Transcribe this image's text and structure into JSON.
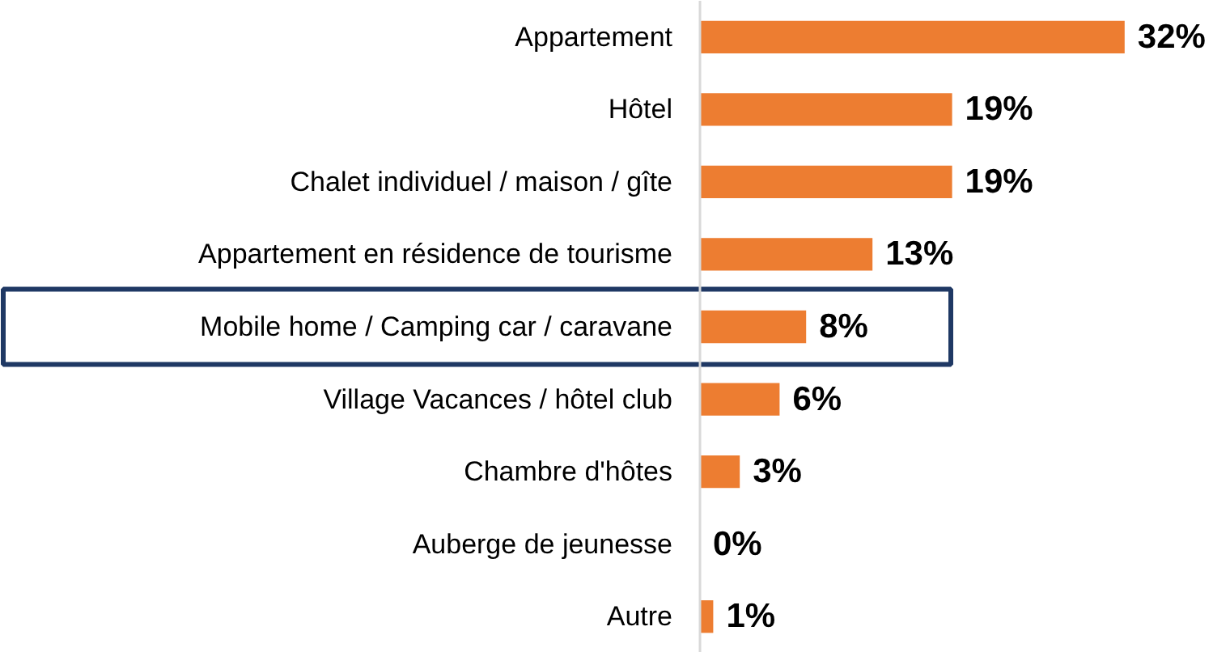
{
  "chart_data": {
    "type": "bar",
    "orientation": "horizontal",
    "grid": false,
    "categories": [
      "Appartement",
      "Hôtel",
      "Chalet individuel / maison / gîte",
      "Appartement en résidence de tourisme",
      "Mobile home / Camping car / caravane",
      "Village Vacances / hôtel club",
      "Chambre d'hôtes",
      "Auberge de jeunesse",
      "Autre"
    ],
    "series": [
      {
        "color": "#ed7d31",
        "values": [
          32,
          19,
          19,
          13,
          8,
          6,
          3,
          0,
          1
        ],
        "value_labels": [
          "32%",
          "19%",
          "19%",
          "13%",
          "8%",
          "6%",
          "3%",
          "0%",
          "1%"
        ]
      }
    ]
  }
}
